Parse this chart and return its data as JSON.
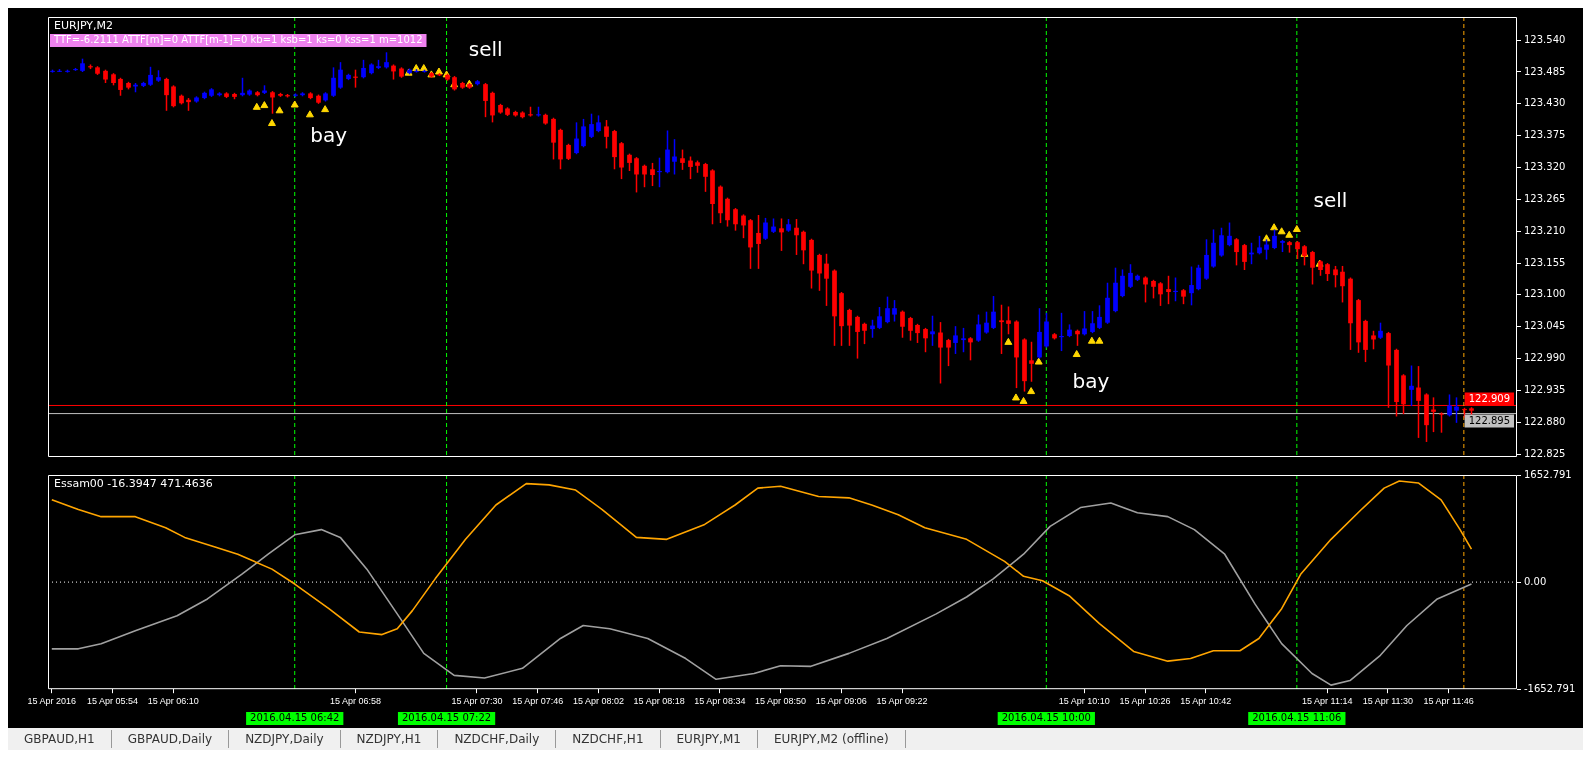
{
  "chart_data": [
    {
      "type": "candlestick",
      "title": "EURJPY,M2",
      "subtitle": "TTF=-6.2111 ATTF[m]=0 ATTF[m-1]=0 kb=1 ksb=1 ks=0 kss=1 m=1012",
      "x": [
        "2016-04-15T05:38",
        "2016-04-15T05:40",
        "2016-04-15T05:42",
        "2016-04-15T05:44",
        "2016-04-15T05:46",
        "2016-04-15T05:48",
        "2016-04-15T05:50",
        "2016-04-15T05:52",
        "2016-04-15T05:54",
        "2016-04-15T05:56",
        "2016-04-15T05:58",
        "2016-04-15T06:00",
        "2016-04-15T06:02",
        "2016-04-15T06:04",
        "2016-04-15T06:06",
        "2016-04-15T06:08",
        "2016-04-15T06:10",
        "2016-04-15T06:12",
        "2016-04-15T06:14",
        "2016-04-15T06:16",
        "2016-04-15T06:18",
        "2016-04-15T06:20",
        "2016-04-15T06:22",
        "2016-04-15T06:24",
        "2016-04-15T06:26",
        "2016-04-15T06:28",
        "2016-04-15T06:30",
        "2016-04-15T06:32",
        "2016-04-15T06:34",
        "2016-04-15T06:36",
        "2016-04-15T06:38",
        "2016-04-15T06:40",
        "2016-04-15T06:42",
        "2016-04-15T06:44",
        "2016-04-15T06:46",
        "2016-04-15T06:48",
        "2016-04-15T06:50",
        "2016-04-15T06:52",
        "2016-04-15T06:54",
        "2016-04-15T06:56",
        "2016-04-15T06:58",
        "2016-04-15T07:00",
        "2016-04-15T07:02",
        "2016-04-15T07:04",
        "2016-04-15T07:06",
        "2016-04-15T07:08",
        "2016-04-15T07:10",
        "2016-04-15T07:12",
        "2016-04-15T07:14",
        "2016-04-15T07:16",
        "2016-04-15T07:18",
        "2016-04-15T07:20",
        "2016-04-15T07:22",
        "2016-04-15T07:24",
        "2016-04-15T07:26",
        "2016-04-15T07:28",
        "2016-04-15T07:30",
        "2016-04-15T07:32",
        "2016-04-15T07:34",
        "2016-04-15T07:36",
        "2016-04-15T07:38",
        "2016-04-15T07:40",
        "2016-04-15T07:42",
        "2016-04-15T07:44",
        "2016-04-15T07:46",
        "2016-04-15T07:48",
        "2016-04-15T07:50",
        "2016-04-15T07:52",
        "2016-04-15T07:54",
        "2016-04-15T07:56",
        "2016-04-15T07:58",
        "2016-04-15T08:00",
        "2016-04-15T08:02",
        "2016-04-15T08:04",
        "2016-04-15T08:06",
        "2016-04-15T08:08",
        "2016-04-15T08:10",
        "2016-04-15T08:12",
        "2016-04-15T08:14",
        "2016-04-15T08:16",
        "2016-04-15T08:18",
        "2016-04-15T08:20",
        "2016-04-15T08:22",
        "2016-04-15T08:24",
        "2016-04-15T08:26",
        "2016-04-15T08:28",
        "2016-04-15T08:30",
        "2016-04-15T08:32",
        "2016-04-15T08:34",
        "2016-04-15T08:36",
        "2016-04-15T08:38",
        "2016-04-15T08:40",
        "2016-04-15T08:42",
        "2016-04-15T08:44",
        "2016-04-15T08:46",
        "2016-04-15T08:48",
        "2016-04-15T08:50",
        "2016-04-15T08:52",
        "2016-04-15T08:54",
        "2016-04-15T08:56",
        "2016-04-15T08:58",
        "2016-04-15T09:00",
        "2016-04-15T09:02",
        "2016-04-15T09:04",
        "2016-04-15T09:06",
        "2016-04-15T09:08",
        "2016-04-15T09:10",
        "2016-04-15T09:12",
        "2016-04-15T09:14",
        "2016-04-15T09:16",
        "2016-04-15T09:18",
        "2016-04-15T09:20",
        "2016-04-15T09:22",
        "2016-04-15T09:24",
        "2016-04-15T09:26",
        "2016-04-15T09:28",
        "2016-04-15T09:30",
        "2016-04-15T09:32",
        "2016-04-15T09:34",
        "2016-04-15T09:36",
        "2016-04-15T09:38",
        "2016-04-15T09:40",
        "2016-04-15T09:42",
        "2016-04-15T09:44",
        "2016-04-15T09:46",
        "2016-04-15T09:48",
        "2016-04-15T09:50",
        "2016-04-15T09:52",
        "2016-04-15T09:54",
        "2016-04-15T09:56",
        "2016-04-15T09:58",
        "2016-04-15T10:00",
        "2016-04-15T10:02",
        "2016-04-15T10:04",
        "2016-04-15T10:06",
        "2016-04-15T10:08",
        "2016-04-15T10:10",
        "2016-04-15T10:12",
        "2016-04-15T10:14",
        "2016-04-15T10:16",
        "2016-04-15T10:18",
        "2016-04-15T10:20",
        "2016-04-15T10:22",
        "2016-04-15T10:24",
        "2016-04-15T10:26",
        "2016-04-15T10:28",
        "2016-04-15T10:30",
        "2016-04-15T10:32",
        "2016-04-15T10:34",
        "2016-04-15T10:36",
        "2016-04-15T10:38",
        "2016-04-15T10:40",
        "2016-04-15T10:42",
        "2016-04-15T10:44",
        "2016-04-15T10:46",
        "2016-04-15T10:48",
        "2016-04-15T10:50",
        "2016-04-15T10:52",
        "2016-04-15T10:54",
        "2016-04-15T10:56",
        "2016-04-15T10:58",
        "2016-04-15T11:00",
        "2016-04-15T11:02",
        "2016-04-15T11:04",
        "2016-04-15T11:06",
        "2016-04-15T11:08",
        "2016-04-15T11:10",
        "2016-04-15T11:12",
        "2016-04-15T11:14",
        "2016-04-15T11:16",
        "2016-04-15T11:18",
        "2016-04-15T11:20",
        "2016-04-15T11:22",
        "2016-04-15T11:24",
        "2016-04-15T11:26",
        "2016-04-15T11:28",
        "2016-04-15T11:30",
        "2016-04-15T11:32",
        "2016-04-15T11:34",
        "2016-04-15T11:36",
        "2016-04-15T11:38",
        "2016-04-15T11:40",
        "2016-04-15T11:42",
        "2016-04-15T11:44",
        "2016-04-15T11:46",
        "2016-04-15T11:48",
        "2016-04-15T11:50",
        "2016-04-15T11:52"
      ],
      "ohlc": [
        [
          123.486,
          123.489,
          123.484,
          123.487
        ],
        [
          123.486,
          123.49,
          123.485,
          123.487
        ],
        [
          123.486,
          123.489,
          123.484,
          123.487
        ],
        [
          123.489,
          123.492,
          123.487,
          123.49
        ],
        [
          123.487,
          123.508,
          123.485,
          123.5
        ],
        [
          123.495,
          123.498,
          123.49,
          123.493
        ],
        [
          123.493,
          123.495,
          123.48,
          123.482
        ],
        [
          123.487,
          123.489,
          123.466,
          123.472
        ],
        [
          123.481,
          123.483,
          123.462,
          123.466
        ],
        [
          123.473,
          123.475,
          123.444,
          123.454
        ],
        [
          123.466,
          123.468,
          123.455,
          123.458
        ],
        [
          123.46,
          123.466,
          123.45,
          123.463
        ],
        [
          123.461,
          123.468,
          123.459,
          123.466
        ],
        [
          123.463,
          123.494,
          123.461,
          123.48
        ],
        [
          123.47,
          123.488,
          123.468,
          123.476
        ],
        [
          123.473,
          123.475,
          123.418,
          123.445
        ],
        [
          123.46,
          123.462,
          123.424,
          123.426
        ],
        [
          123.444,
          123.446,
          123.429,
          123.431
        ],
        [
          123.437,
          123.44,
          123.418,
          123.433
        ],
        [
          123.434,
          123.443,
          123.432,
          123.441
        ],
        [
          123.44,
          123.451,
          123.438,
          123.449
        ],
        [
          123.444,
          123.457,
          123.442,
          123.455
        ],
        [
          123.445,
          123.45,
          123.443,
          123.448
        ],
        [
          123.448,
          123.45,
          123.44,
          123.442
        ],
        [
          123.447,
          123.449,
          123.438,
          123.442
        ],
        [
          123.445,
          123.475,
          123.443,
          123.449
        ],
        [
          123.446,
          123.455,
          123.444,
          123.453
        ],
        [
          123.45,
          123.452,
          123.443,
          123.445
        ],
        [
          123.449,
          123.462,
          123.447,
          123.453
        ],
        [
          123.45,
          123.452,
          123.413,
          123.441
        ],
        [
          123.447,
          123.449,
          123.442,
          123.444
        ],
        [
          123.445,
          123.447,
          123.441,
          123.443
        ],
        [
          123.444,
          123.448,
          123.442,
          123.446
        ],
        [
          123.445,
          123.45,
          123.443,
          123.448
        ],
        [
          123.448,
          123.45,
          123.438,
          123.44
        ],
        [
          123.444,
          123.446,
          123.43,
          123.432
        ],
        [
          123.436,
          123.45,
          123.434,
          123.448
        ],
        [
          123.444,
          123.493,
          123.442,
          123.475
        ],
        [
          123.458,
          123.502,
          123.456,
          123.489
        ],
        [
          123.473,
          123.482,
          123.471,
          123.48
        ],
        [
          123.477,
          123.489,
          123.458,
          123.475
        ],
        [
          123.476,
          123.506,
          123.474,
          123.492
        ],
        [
          123.483,
          123.5,
          123.481,
          123.498
        ],
        [
          123.492,
          123.506,
          123.49,
          123.495
        ],
        [
          123.493,
          123.519,
          123.491,
          123.502
        ],
        [
          123.496,
          123.498,
          123.472,
          123.486
        ],
        [
          123.491,
          123.493,
          123.475,
          123.477
        ],
        [
          123.483,
          123.491,
          123.481,
          123.489
        ],
        [
          123.486,
          123.49,
          123.484,
          123.487
        ],
        [
          123.486,
          123.489,
          123.484,
          123.487
        ],
        [
          123.483,
          123.485,
          123.475,
          123.477
        ],
        [
          123.481,
          123.483,
          123.478,
          123.48
        ],
        [
          123.48,
          123.482,
          123.47,
          123.472
        ],
        [
          123.476,
          123.478,
          123.453,
          123.455
        ],
        [
          123.466,
          123.468,
          123.456,
          123.458
        ],
        [
          123.464,
          123.466,
          123.456,
          123.458
        ],
        [
          123.464,
          123.471,
          123.462,
          123.469
        ],
        [
          123.464,
          123.466,
          123.407,
          123.435
        ],
        [
          123.449,
          123.451,
          123.398,
          123.41
        ],
        [
          123.428,
          123.43,
          123.413,
          123.415
        ],
        [
          123.422,
          123.424,
          123.409,
          123.411
        ],
        [
          123.416,
          123.418,
          123.408,
          123.41
        ],
        [
          123.415,
          123.417,
          123.405,
          123.407
        ],
        [
          123.412,
          123.425,
          123.408,
          123.41
        ],
        [
          123.41,
          123.425,
          123.408,
          123.412
        ],
        [
          123.411,
          123.413,
          123.394,
          123.396
        ],
        [
          123.404,
          123.406,
          123.334,
          123.363
        ],
        [
          123.385,
          123.387,
          123.317,
          123.334
        ],
        [
          123.359,
          123.361,
          123.333,
          123.335
        ],
        [
          123.345,
          123.398,
          123.343,
          123.37
        ],
        [
          123.357,
          123.404,
          123.355,
          123.391
        ],
        [
          123.373,
          123.413,
          123.371,
          123.395
        ],
        [
          123.383,
          123.41,
          123.381,
          123.398
        ],
        [
          123.391,
          123.402,
          123.353,
          123.373
        ],
        [
          123.383,
          123.385,
          123.317,
          123.338
        ],
        [
          123.362,
          123.364,
          123.3,
          123.32
        ],
        [
          123.342,
          123.344,
          123.314,
          123.328
        ],
        [
          123.336,
          123.338,
          123.277,
          123.308
        ],
        [
          123.323,
          123.325,
          123.286,
          123.308
        ],
        [
          123.317,
          123.328,
          123.288,
          123.307
        ],
        [
          123.312,
          123.337,
          123.286,
          123.314
        ],
        [
          123.312,
          123.384,
          123.31,
          123.351
        ],
        [
          123.33,
          123.369,
          123.308,
          123.339
        ],
        [
          123.336,
          123.351,
          123.316,
          123.328
        ],
        [
          123.332,
          123.339,
          123.3,
          123.321
        ],
        [
          123.329,
          123.332,
          123.311,
          123.323
        ],
        [
          123.326,
          123.328,
          123.278,
          123.304
        ],
        [
          123.315,
          123.317,
          123.222,
          123.257
        ],
        [
          123.287,
          123.289,
          123.224,
          123.241
        ],
        [
          123.266,
          123.268,
          123.218,
          123.229
        ],
        [
          123.248,
          123.25,
          123.211,
          123.222
        ],
        [
          123.237,
          123.239,
          123.198,
          123.22
        ],
        [
          123.229,
          123.231,
          123.145,
          123.182
        ],
        [
          123.207,
          123.238,
          123.145,
          123.188
        ],
        [
          123.197,
          123.233,
          123.195,
          123.225
        ],
        [
          123.209,
          123.232,
          123.207,
          123.218
        ],
        [
          123.215,
          123.232,
          123.176,
          123.208
        ],
        [
          123.211,
          123.231,
          123.209,
          123.222
        ],
        [
          123.216,
          123.231,
          123.169,
          123.203
        ],
        [
          123.209,
          123.211,
          123.153,
          123.177
        ],
        [
          123.195,
          123.197,
          123.111,
          123.142
        ],
        [
          123.169,
          123.171,
          123.107,
          123.137
        ],
        [
          123.154,
          123.171,
          123.081,
          123.128
        ],
        [
          123.142,
          123.144,
          123.012,
          123.063
        ],
        [
          123.103,
          123.105,
          123.012,
          123.046
        ],
        [
          123.074,
          123.076,
          123.012,
          123.047
        ],
        [
          123.062,
          123.064,
          122.99,
          123.036
        ],
        [
          123.05,
          123.052,
          123.015,
          123.038
        ],
        [
          123.041,
          123.057,
          123.026,
          123.047
        ],
        [
          123.043,
          123.079,
          123.041,
          123.063
        ],
        [
          123.053,
          123.097,
          123.051,
          123.077
        ],
        [
          123.066,
          123.091,
          123.054,
          123.077
        ],
        [
          123.071,
          123.073,
          123.026,
          123.045
        ],
        [
          123.06,
          123.062,
          123.021,
          123.038
        ],
        [
          123.048,
          123.05,
          123.017,
          123.034
        ],
        [
          123.041,
          123.043,
          123.001,
          123.025
        ],
        [
          123.032,
          123.064,
          123.012,
          123.037
        ],
        [
          123.035,
          123.053,
          122.947,
          123.009
        ],
        [
          123.022,
          123.024,
          122.977,
          123.009
        ],
        [
          123.017,
          123.046,
          122.998,
          123.03
        ],
        [
          123.022,
          123.043,
          123.001,
          123.025
        ],
        [
          123.025,
          123.027,
          122.987,
          123.018
        ],
        [
          123.021,
          123.066,
          123.019,
          123.049
        ],
        [
          123.035,
          123.071,
          123.033,
          123.052
        ],
        [
          123.043,
          123.098,
          123.041,
          123.071
        ],
        [
          123.056,
          123.083,
          122.998,
          123.053
        ],
        [
          123.056,
          123.08,
          123.032,
          123.05
        ],
        [
          123.054,
          123.056,
          122.939,
          122.992
        ],
        [
          123.023,
          123.025,
          122.933,
          122.951
        ],
        [
          122.987,
          123.019,
          122.95,
          122.981
        ],
        [
          122.992,
          123.077,
          122.99,
          123.036
        ],
        [
          123.011,
          123.069,
          123.009,
          123.054
        ],
        [
          123.032,
          123.034,
          123.023,
          123.025
        ],
        [
          123.027,
          123.069,
          123.003,
          123.029
        ],
        [
          123.029,
          123.049,
          123.027,
          123.04
        ],
        [
          123.038,
          123.04,
          123.012,
          123.032
        ],
        [
          123.032,
          123.072,
          123.03,
          123.042
        ],
        [
          123.036,
          123.072,
          123.034,
          123.051
        ],
        [
          123.043,
          123.082,
          123.041,
          123.062
        ],
        [
          123.052,
          123.121,
          123.05,
          123.095
        ],
        [
          123.072,
          123.147,
          123.07,
          123.121
        ],
        [
          123.098,
          123.144,
          123.096,
          123.133
        ],
        [
          123.114,
          123.153,
          123.112,
          123.138
        ],
        [
          123.126,
          123.135,
          123.124,
          123.133
        ],
        [
          123.13,
          123.132,
          123.087,
          123.118
        ],
        [
          123.124,
          123.126,
          123.094,
          123.114
        ],
        [
          123.12,
          123.122,
          123.081,
          123.101
        ],
        [
          123.11,
          123.133,
          123.084,
          123.105
        ],
        [
          123.105,
          123.13,
          123.089,
          123.107
        ],
        [
          123.108,
          123.11,
          123.084,
          123.097
        ],
        [
          123.103,
          123.149,
          123.082,
          123.117
        ],
        [
          123.11,
          123.152,
          123.108,
          123.147
        ],
        [
          123.128,
          123.196,
          123.126,
          123.169
        ],
        [
          123.149,
          123.213,
          123.147,
          123.19
        ],
        [
          123.168,
          123.216,
          123.166,
          123.203
        ],
        [
          123.186,
          123.225,
          123.184,
          123.202
        ],
        [
          123.196,
          123.198,
          123.151,
          123.174
        ],
        [
          123.186,
          123.188,
          123.143,
          123.157
        ],
        [
          123.17,
          123.19,
          123.153,
          123.173
        ],
        [
          123.172,
          123.202,
          123.17,
          123.182
        ],
        [
          123.178,
          123.196,
          123.161,
          123.187
        ],
        [
          123.181,
          123.213,
          123.179,
          123.202
        ],
        [
          123.19,
          123.195,
          123.174,
          123.193
        ],
        [
          123.191,
          123.193,
          123.173,
          123.186
        ],
        [
          123.191,
          123.193,
          123.162,
          123.179
        ],
        [
          123.184,
          123.186,
          123.151,
          123.167
        ],
        [
          123.174,
          123.176,
          123.118,
          123.147
        ],
        [
          123.158,
          123.16,
          123.133,
          123.143
        ],
        [
          123.153,
          123.155,
          123.124,
          123.136
        ],
        [
          123.144,
          123.15,
          123.113,
          123.134
        ],
        [
          123.14,
          123.15,
          123.087,
          123.115
        ],
        [
          123.128,
          123.13,
          123.005,
          123.051
        ],
        [
          123.091,
          123.093,
          123,
          123.018
        ],
        [
          123.055,
          123.057,
          122.984,
          123.005
        ],
        [
          123.03,
          123.038,
          123.006,
          123.023
        ],
        [
          123.026,
          123.052,
          123.024,
          123.038
        ],
        [
          123.034,
          123.036,
          122.905,
          122.978
        ],
        [
          123.005,
          123.007,
          122.89,
          122.915
        ],
        [
          122.961,
          122.963,
          122.894,
          122.911
        ],
        [
          122.936,
          122.978,
          122.908,
          122.943
        ],
        [
          122.94,
          122.977,
          122.853,
          122.917
        ],
        [
          122.928,
          122.93,
          122.846,
          122.875
        ],
        [
          122.902,
          122.923,
          122.863,
          122.898
        ],
        [
          122.895,
          122.897,
          122.862,
          122.893
        ],
        [
          122.892,
          122.928,
          122.89,
          122.909
        ],
        [
          122.9,
          122.923,
          122.879,
          122.907
        ],
        [
          122.903,
          122.905,
          122.888,
          122.901
        ],
        [
          122.904,
          122.906,
          122.892,
          122.9
        ]
      ],
      "colors": [
        "#0000ff",
        "#0000ff",
        "#0000ff",
        "#0000ff",
        "#0000ff",
        "#ff0000",
        "#ff0000",
        "#ff0000",
        "#ff0000",
        "#ff0000",
        "#ff0000",
        "#0000ff",
        "#0000ff",
        "#0000ff",
        "#0000ff",
        "#ff0000",
        "#ff0000",
        "#ff0000",
        "#ff0000",
        "#0000ff",
        "#0000ff",
        "#0000ff",
        "#0000ff",
        "#ff0000",
        "#ff0000",
        "#0000ff",
        "#0000ff",
        "#ff0000",
        "#0000ff",
        "#ff0000",
        "#ff0000",
        "#ff0000",
        "#0000ff",
        "#0000ff",
        "#ff0000",
        "#ff0000",
        "#0000ff",
        "#0000ff",
        "#0000ff",
        "#0000ff",
        "#ff0000",
        "#0000ff",
        "#0000ff",
        "#0000ff",
        "#0000ff",
        "#ff0000",
        "#ff0000",
        "#0000ff",
        "#0000ff",
        "#0000ff",
        "#ff0000",
        "#ff0000",
        "#ff0000",
        "#ff0000",
        "#ff0000",
        "#ff0000",
        "#0000ff",
        "#ff0000",
        "#ff0000",
        "#ff0000",
        "#ff0000",
        "#ff0000",
        "#ff0000",
        "#ff0000",
        "#0000ff",
        "#ff0000",
        "#ff0000",
        "#ff0000",
        "#ff0000",
        "#0000ff",
        "#0000ff",
        "#0000ff",
        "#0000ff",
        "#ff0000",
        "#ff0000",
        "#ff0000",
        "#ff0000",
        "#ff0000",
        "#ff0000",
        "#ff0000",
        "#0000ff",
        "#0000ff",
        "#0000ff",
        "#ff0000",
        "#ff0000",
        "#ff0000",
        "#ff0000",
        "#ff0000",
        "#ff0000",
        "#ff0000",
        "#ff0000",
        "#ff0000",
        "#ff0000",
        "#ff0000",
        "#0000ff",
        "#0000ff",
        "#ff0000",
        "#0000ff",
        "#ff0000",
        "#ff0000",
        "#ff0000",
        "#ff0000",
        "#ff0000",
        "#ff0000",
        "#ff0000",
        "#ff0000",
        "#ff0000",
        "#ff0000",
        "#0000ff",
        "#0000ff",
        "#0000ff",
        "#0000ff",
        "#ff0000",
        "#ff0000",
        "#ff0000",
        "#ff0000",
        "#0000ff",
        "#ff0000",
        "#ff0000",
        "#0000ff",
        "#0000ff",
        "#ff0000",
        "#0000ff",
        "#0000ff",
        "#0000ff",
        "#ff0000",
        "#ff0000",
        "#ff0000",
        "#ff0000",
        "#ff0000",
        "#0000ff",
        "#0000ff",
        "#ff0000",
        "#0000ff",
        "#0000ff",
        "#ff0000",
        "#0000ff",
        "#0000ff",
        "#0000ff",
        "#0000ff",
        "#0000ff",
        "#0000ff",
        "#0000ff",
        "#0000ff",
        "#ff0000",
        "#ff0000",
        "#ff0000",
        "#ff0000",
        "#0000ff",
        "#ff0000",
        "#0000ff",
        "#0000ff",
        "#0000ff",
        "#0000ff",
        "#0000ff",
        "#0000ff",
        "#ff0000",
        "#ff0000",
        "#0000ff",
        "#0000ff",
        "#0000ff",
        "#0000ff",
        "#0000ff",
        "#ff0000",
        "#ff0000",
        "#ff0000",
        "#ff0000",
        "#ff0000",
        "#ff0000",
        "#ff0000",
        "#ff0000",
        "#ff0000",
        "#ff0000",
        "#ff0000",
        "#ff0000",
        "#0000ff",
        "#ff0000",
        "#ff0000",
        "#ff0000",
        "#0000ff",
        "#ff0000",
        "#ff0000",
        "#ff0000",
        "#ff0000",
        "#0000ff",
        "#0000ff",
        "#ff0000",
        "#ff0000"
      ],
      "series": [
        {
          "type": "scatter",
          "color": "#ffd700",
          "marker": "triangle",
          "x": [
            "2016-04-15T06:32",
            "2016-04-15T06:34",
            "2016-04-15T06:36",
            "2016-04-15T06:38",
            "2016-04-15T06:42",
            "2016-04-15T06:46",
            "2016-04-15T06:50",
            "2016-04-15T09:50",
            "2016-04-15T09:52",
            "2016-04-15T09:54",
            "2016-04-15T09:56",
            "2016-04-15T09:58",
            "2016-04-15T10:08",
            "2016-04-15T10:12",
            "2016-04-15T10:14"
          ],
          "values": [
            123.424,
            123.427,
            123.396,
            123.418,
            123.428,
            123.411,
            123.42,
            123.018,
            122.922,
            122.916,
            122.933,
            122.984,
            122.997,
            123.02,
            123.02
          ]
        },
        {
          "type": "scatter",
          "color": "#ffd700",
          "marker": "triangle",
          "x": [
            "2016-04-15T07:12",
            "2016-04-15T07:14",
            "2016-04-15T07:16",
            "2016-04-15T07:18",
            "2016-04-15T07:20",
            "2016-04-15T07:22",
            "2016-04-15T07:24",
            "2016-04-15T07:28",
            "2016-04-15T10:58",
            "2016-04-15T11:00",
            "2016-04-15T11:02",
            "2016-04-15T11:04",
            "2016-04-15T11:06",
            "2016-04-15T11:08",
            "2016-04-15T11:12"
          ],
          "values": [
            123.483,
            123.491,
            123.491,
            123.48,
            123.485,
            123.48,
            123.463,
            123.464,
            123.197,
            123.216,
            123.209,
            123.203,
            123.213,
            123.17,
            123.153
          ]
        }
      ],
      "xlim": [
        "2016-04-15T05:37",
        "2016-04-15T12:04"
      ],
      "ylim": [
        122.82,
        123.58
      ],
      "yticks": [
        122.825,
        {
          "value": 122.88,
          "label": "122.880"
        },
        122.935,
        {
          "value": 122.99,
          "label": "122.990"
        },
        123.045,
        {
          "value": 123.1,
          "label": "123.100"
        },
        123.155,
        {
          "value": 123.21,
          "label": "123.210"
        },
        123.265,
        {
          "value": 123.32,
          "label": "123.320"
        },
        123.375,
        {
          "value": 123.43,
          "label": "123.430"
        },
        123.485,
        {
          "value": 123.54,
          "label": "123.540"
        }
      ],
      "tick_labels": "y",
      "ref_lines": [
        {
          "axis": "y",
          "value": 122.909,
          "label": "122.909",
          "color": "#ff0000"
        },
        {
          "axis": "y",
          "value": 122.895,
          "label": "122.895",
          "color": "#c0c0c0"
        },
        {
          "axis": "x",
          "value": "2016-04-15T06:42",
          "color": "#00ff00",
          "line_style": "dashed"
        },
        {
          "axis": "x",
          "value": "2016-04-15T07:22",
          "color": "#00ff00",
          "line_style": "dashed"
        },
        {
          "axis": "x",
          "value": "2016-04-15T10:00",
          "color": "#00ff00",
          "line_style": "dashed"
        },
        {
          "axis": "x",
          "value": "2016-04-15T11:06",
          "color": "#00ff00",
          "line_style": "dashed"
        },
        {
          "axis": "x",
          "value": "2016-04-15T11:50",
          "color": "#ffa500",
          "line_style": "dashed"
        }
      ],
      "annotations": [
        "sell",
        "bay",
        "bay",
        "sell"
      ]
    },
    {
      "type": "line",
      "title": "Essam00 -16.3947 471.4636",
      "series": [
        {
          "color": "#ffa500",
          "x": [
            "2016-04-15T05:38",
            "2016-04-15T05:45",
            "2016-04-15T05:51",
            "2016-04-15T06:00",
            "2016-04-15T06:08",
            "2016-04-15T06:13",
            "2016-04-15T06:21",
            "2016-04-15T06:27",
            "2016-04-15T06:36",
            "2016-04-15T06:42",
            "2016-04-15T06:51",
            "2016-04-15T06:59",
            "2016-04-15T07:05",
            "2016-04-15T07:09",
            "2016-04-15T07:13",
            "2016-04-15T07:19",
            "2016-04-15T07:27",
            "2016-04-15T07:35",
            "2016-04-15T07:43",
            "2016-04-15T07:49",
            "2016-04-15T07:56",
            "2016-04-15T08:03",
            "2016-04-15T08:12",
            "2016-04-15T08:20",
            "2016-04-15T08:30",
            "2016-04-15T08:38",
            "2016-04-15T08:44",
            "2016-04-15T08:50",
            "2016-04-15T09:00",
            "2016-04-15T09:08",
            "2016-04-15T09:14",
            "2016-04-15T09:21",
            "2016-04-15T09:28",
            "2016-04-15T09:39",
            "2016-04-15T09:49",
            "2016-04-15T09:54",
            "2016-04-15T09:59",
            "2016-04-15T10:06",
            "2016-04-15T10:14",
            "2016-04-15T10:23",
            "2016-04-15T10:32",
            "2016-04-15T10:38",
            "2016-04-15T10:44",
            "2016-04-15T10:51",
            "2016-04-15T10:56",
            "2016-04-15T11:02",
            "2016-04-15T11:07",
            "2016-04-15T11:15",
            "2016-04-15T11:23",
            "2016-04-15T11:29",
            "2016-04-15T11:33",
            "2016-04-15T11:38",
            "2016-04-15T11:44",
            "2016-04-15T11:49",
            "2016-04-15T11:52"
          ],
          "values": [
            1270,
            1120,
            1010,
            1010,
            840,
            690,
            540,
            430,
            200,
            -30,
            -410,
            -770,
            -810,
            -720,
            -440,
            50,
            660,
            1190,
            1520,
            1500,
            1420,
            1120,
            690,
            660,
            890,
            1190,
            1450,
            1480,
            1320,
            1300,
            1190,
            1040,
            840,
            660,
            320,
            90,
            20,
            -210,
            -640,
            -1070,
            -1220,
            -1180,
            -1060,
            -1060,
            -870,
            -410,
            120,
            660,
            1120,
            1450,
            1560,
            1530,
            1270,
            810,
            510
          ]
        },
        {
          "color": "#a0a0a0",
          "x": [
            "2016-04-15T05:38",
            "2016-04-15T05:45",
            "2016-04-15T05:51",
            "2016-04-15T06:00",
            "2016-04-15T06:11",
            "2016-04-15T06:19",
            "2016-04-15T06:28",
            "2016-04-15T06:35",
            "2016-04-15T06:42",
            "2016-04-15T06:49",
            "2016-04-15T06:54",
            "2016-04-15T07:01",
            "2016-04-15T07:09",
            "2016-04-15T07:16",
            "2016-04-15T07:24",
            "2016-04-15T07:32",
            "2016-04-15T07:42",
            "2016-04-15T07:52",
            "2016-04-15T07:58",
            "2016-04-15T08:05",
            "2016-04-15T08:15",
            "2016-04-15T08:25",
            "2016-04-15T08:33",
            "2016-04-15T08:43",
            "2016-04-15T08:50",
            "2016-04-15T08:58",
            "2016-04-15T09:08",
            "2016-04-15T09:18",
            "2016-04-15T09:31",
            "2016-04-15T09:39",
            "2016-04-15T09:46",
            "2016-04-15T09:54",
            "2016-04-15T10:01",
            "2016-04-15T10:09",
            "2016-04-15T10:17",
            "2016-04-15T10:24",
            "2016-04-15T10:32",
            "2016-04-15T10:39",
            "2016-04-15T10:47",
            "2016-04-15T10:55",
            "2016-04-15T11:02",
            "2016-04-15T11:10",
            "2016-04-15T11:15",
            "2016-04-15T11:20",
            "2016-04-15T11:28",
            "2016-04-15T11:35",
            "2016-04-15T11:43",
            "2016-04-15T11:52"
          ],
          "values": [
            -1030,
            -1030,
            -950,
            -750,
            -520,
            -260,
            120,
            430,
            730,
            810,
            690,
            200,
            -490,
            -1100,
            -1440,
            -1480,
            -1330,
            -870,
            -670,
            -720,
            -870,
            -1180,
            -1500,
            -1410,
            -1290,
            -1300,
            -1100,
            -870,
            -490,
            -230,
            50,
            430,
            860,
            1150,
            1220,
            1070,
            1010,
            810,
            430,
            -340,
            -950,
            -1410,
            -1590,
            -1520,
            -1130,
            -670,
            -260,
            -30
          ]
        }
      ],
      "xlim": [
        "2016-04-15T05:37",
        "2016-04-15T12:04"
      ],
      "ylim": [
        -1652.791,
        1652.791
      ],
      "yticks": [
        -1652.791,
        {
          "value": 0,
          "label": "0.00"
        },
        1652.791
      ],
      "xticks": [
        {
          "value": "2016-04-15T05:38",
          "label": "15 Apr 2016"
        },
        {
          "value": "2016-04-15T05:54",
          "label": "15 Apr 05:54"
        },
        {
          "value": "2016-04-15T06:10",
          "label": "15 Apr 06:10"
        },
        {
          "value": "2016-04-15T06:58",
          "label": "15 Apr 06:58"
        },
        {
          "value": "2016-04-15T07:30",
          "label": "15 Apr 07:30"
        },
        {
          "value": "2016-04-15T07:46",
          "label": "15 Apr 07:46"
        },
        {
          "value": "2016-04-15T08:02",
          "label": "15 Apr 08:02"
        },
        {
          "value": "2016-04-15T08:18",
          "label": "15 Apr 08:18"
        },
        {
          "value": "2016-04-15T08:34",
          "label": "15 Apr 08:34"
        },
        {
          "value": "2016-04-15T08:50",
          "label": "15 Apr 08:50"
        },
        {
          "value": "2016-04-15T09:06",
          "label": "15 Apr 09:06"
        },
        {
          "value": "2016-04-15T09:22",
          "label": "15 Apr 09:22"
        },
        {
          "value": "2016-04-15T10:10",
          "label": "15 Apr 10:10"
        },
        {
          "value": "2016-04-15T10:26",
          "label": "15 Apr 10:26"
        },
        {
          "value": "2016-04-15T10:42",
          "label": "15 Apr 10:42"
        },
        {
          "value": "2016-04-15T11:14",
          "label": "15 Apr 11:14"
        },
        {
          "value": "2016-04-15T11:30",
          "label": "15 Apr 11:30"
        },
        {
          "value": "2016-04-15T11:46",
          "label": "15 Apr 11:46"
        }
      ],
      "ref_lines": [
        {
          "axis": "y",
          "value": 0,
          "color": "#ffffff",
          "line_style": "dotted"
        },
        {
          "axis": "x",
          "value": "2016-04-15T06:42",
          "label": "2016.04.15 06:42",
          "color": "#00ff00",
          "line_style": "dashed"
        },
        {
          "axis": "x",
          "value": "2016-04-15T07:22",
          "label": "2016.04.15 07:22",
          "color": "#00ff00",
          "line_style": "dashed"
        },
        {
          "axis": "x",
          "value": "2016-04-15T10:00",
          "label": "2016.04.15 10:00",
          "color": "#00ff00",
          "line_style": "dashed"
        },
        {
          "axis": "x",
          "value": "2016-04-15T11:06",
          "label": "2016.04.15 11:06",
          "color": "#00ff00",
          "line_style": "dashed"
        },
        {
          "axis": "x",
          "value": "2016-04-15T11:50",
          "color": "#ffa500",
          "line_style": "dashed"
        }
      ]
    },
    {
      "type": "other",
      "annotations": [
        "GBPAUD,H1",
        "GBPAUD,Daily",
        "NZDJPY,Daily",
        "NZDJPY,H1",
        "NZDCHF,Daily",
        "NZDCHF,H1",
        "EURJPY,M1",
        "EURJPY,M2 (offline)"
      ]
    }
  ]
}
